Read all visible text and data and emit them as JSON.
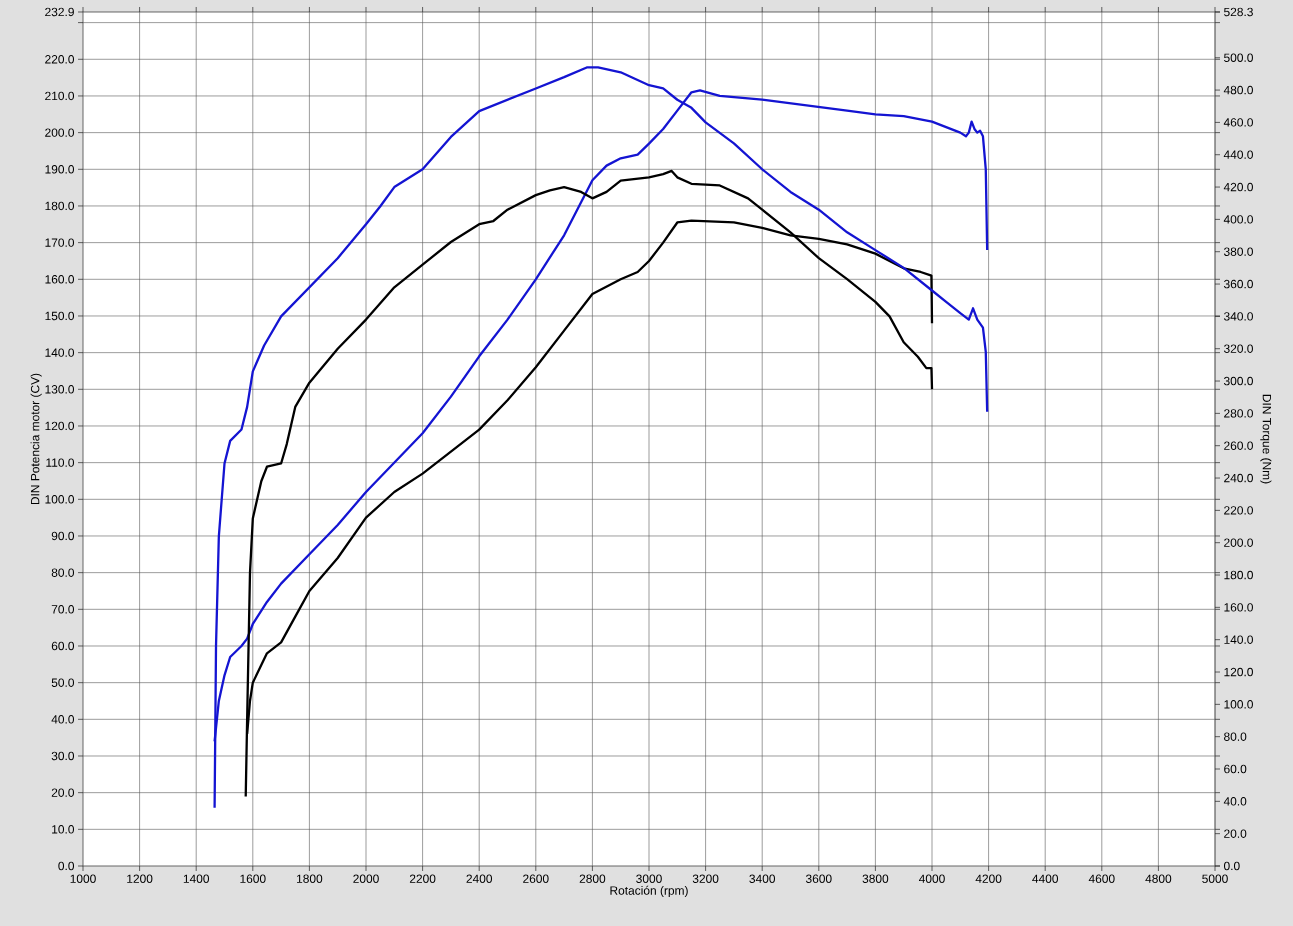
{
  "chart_data": {
    "type": "line",
    "xlabel": "Rotación (rpm)",
    "ylabel": "DIN Potencia motor (CV)",
    "y2label": "DIN Torque (Nm)",
    "xlim": [
      1000,
      5000
    ],
    "xticks": [
      1000,
      1200,
      1400,
      1600,
      1800,
      2000,
      2200,
      2400,
      2600,
      2800,
      3000,
      3200,
      3400,
      3600,
      3800,
      4000,
      4200,
      4400,
      4600,
      4800,
      5000
    ],
    "ylim": [
      0,
      232.9
    ],
    "yticks": [
      {
        "value": 0,
        "label": "0.0"
      },
      {
        "value": 10,
        "label": "10.0"
      },
      {
        "value": 20,
        "label": "20.0"
      },
      {
        "value": 30,
        "label": "30.0"
      },
      {
        "value": 40,
        "label": "40.0"
      },
      {
        "value": 50,
        "label": "50.0"
      },
      {
        "value": 60,
        "label": "60.0"
      },
      {
        "value": 70,
        "label": "70.0"
      },
      {
        "value": 80,
        "label": "80.0"
      },
      {
        "value": 90,
        "label": "90.0"
      },
      {
        "value": 100,
        "label": "100.0"
      },
      {
        "value": 110,
        "label": "110.0"
      },
      {
        "value": 120,
        "label": "120.0"
      },
      {
        "value": 130,
        "label": "130.0"
      },
      {
        "value": 140,
        "label": "140.0"
      },
      {
        "value": 150,
        "label": "150.0"
      },
      {
        "value": 160,
        "label": "160.0"
      },
      {
        "value": 170,
        "label": "170.0"
      },
      {
        "value": 180,
        "label": "180.0"
      },
      {
        "value": 190,
        "label": "190.0"
      },
      {
        "value": 200,
        "label": "200.0"
      },
      {
        "value": 210,
        "label": "210.0"
      },
      {
        "value": 220,
        "label": "220.0"
      },
      {
        "value": 230,
        "label": null
      },
      {
        "value": 232.9,
        "label": "232.9"
      }
    ],
    "y2lim": [
      0,
      528.3
    ],
    "y2ticks": [
      {
        "value": 0,
        "label": "0.0"
      },
      {
        "value": 20,
        "label": "20.0"
      },
      {
        "value": 40,
        "label": "40.0"
      },
      {
        "value": 60,
        "label": "60.0"
      },
      {
        "value": 80,
        "label": "80.0"
      },
      {
        "value": 100,
        "label": "100.0"
      },
      {
        "value": 120,
        "label": "120.0"
      },
      {
        "value": 140,
        "label": "140.0"
      },
      {
        "value": 160,
        "label": "160.0"
      },
      {
        "value": 180,
        "label": "180.0"
      },
      {
        "value": 200,
        "label": "200.0"
      },
      {
        "value": 220,
        "label": "220.0"
      },
      {
        "value": 240,
        "label": "240.0"
      },
      {
        "value": 260,
        "label": "260.0"
      },
      {
        "value": 280,
        "label": "280.0"
      },
      {
        "value": 300,
        "label": "300.0"
      },
      {
        "value": 320,
        "label": "320.0"
      },
      {
        "value": 340,
        "label": "340.0"
      },
      {
        "value": 360,
        "label": "360.0"
      },
      {
        "value": 380,
        "label": "380.0"
      },
      {
        "value": 400,
        "label": "400.0"
      },
      {
        "value": 420,
        "label": "420.0"
      },
      {
        "value": 440,
        "label": "440.0"
      },
      {
        "value": 460,
        "label": "460.0"
      },
      {
        "value": 480,
        "label": "480.0"
      },
      {
        "value": 500,
        "label": "500.0"
      },
      {
        "value": 528.3,
        "label": "528.3"
      }
    ],
    "grid": true,
    "marker": "none",
    "line_style": "solid",
    "series": [
      {
        "color": "#1414d2",
        "axis": "y2",
        "x": [
          1465,
          1470,
          1480,
          1500,
          1520,
          1560,
          1580,
          1600,
          1640,
          1700,
          1800,
          1900,
          2000,
          2050,
          2100,
          2200,
          2300,
          2400,
          2500,
          2600,
          2700,
          2780,
          2820,
          2900,
          3000,
          3050,
          3100,
          3150,
          3200,
          3300,
          3400,
          3500,
          3600,
          3700,
          3800,
          3900,
          4000,
          4050,
          4100,
          4130,
          4145,
          4160,
          4180,
          4190,
          4195
        ],
        "values": [
          36,
          136,
          204,
          249,
          263,
          270,
          284,
          306,
          322,
          340,
          358,
          376,
          397,
          408,
          420,
          431,
          451,
          467,
          474,
          481,
          488,
          494,
          494,
          491,
          483,
          481,
          474,
          469,
          460,
          447,
          431,
          417,
          406,
          392,
          381,
          370,
          356,
          349,
          342,
          338,
          345,
          338,
          333,
          318,
          281
        ]
      },
      {
        "color": "#1414d2",
        "x": [
          1465,
          1480,
          1500,
          1520,
          1560,
          1580,
          1600,
          1650,
          1700,
          1800,
          1900,
          2000,
          2100,
          2200,
          2300,
          2400,
          2500,
          2600,
          2700,
          2760,
          2800,
          2850,
          2900,
          2960,
          3000,
          3050,
          3100,
          3150,
          3180,
          3250,
          3400,
          3500,
          3600,
          3700,
          3800,
          3900,
          4000,
          4100,
          4120,
          4130,
          4140,
          4150,
          4160,
          4170,
          4180,
          4190,
          4195
        ],
        "values": [
          34,
          45,
          52,
          57,
          60,
          62,
          66,
          72,
          77,
          85,
          93,
          102,
          110,
          118,
          128,
          139,
          149,
          160,
          172,
          181,
          187,
          191,
          193,
          194,
          197,
          201,
          206,
          211,
          211.5,
          210,
          209,
          208,
          207,
          206,
          205,
          204.5,
          203,
          200,
          199,
          200,
          203,
          201,
          200,
          200.5,
          199,
          190,
          168
        ]
      },
      {
        "color": "#000000",
        "axis": "y2",
        "x": [
          1575,
          1580,
          1590,
          1600,
          1630,
          1650,
          1700,
          1720,
          1750,
          1800,
          1900,
          2000,
          2100,
          2200,
          2300,
          2400,
          2450,
          2500,
          2600,
          2650,
          2700,
          2760,
          2800,
          2850,
          2900,
          3000,
          3050,
          3080,
          3100,
          3150,
          3250,
          3350,
          3400,
          3500,
          3600,
          3700,
          3800,
          3850,
          3900,
          3950,
          3980,
          3998,
          4000
        ],
        "values": [
          43,
          91,
          181,
          215,
          238,
          247,
          249,
          261,
          284,
          299,
          320,
          338,
          358,
          372,
          386,
          397,
          399,
          406,
          415,
          418,
          420,
          417,
          413,
          417,
          424,
          426,
          428,
          430,
          426,
          422,
          421,
          413,
          406,
          392,
          376,
          363,
          349,
          340,
          324,
          315,
          308,
          308,
          295
        ]
      },
      {
        "color": "#000000",
        "x": [
          1580,
          1590,
          1600,
          1650,
          1700,
          1750,
          1800,
          1900,
          2000,
          2100,
          2200,
          2300,
          2400,
          2500,
          2600,
          2700,
          2800,
          2900,
          2960,
          3000,
          3050,
          3100,
          3150,
          3300,
          3400,
          3500,
          3600,
          3700,
          3800,
          3900,
          3960,
          3998,
          4000
        ],
        "values": [
          36,
          45,
          50,
          58,
          61,
          68,
          75,
          84,
          95,
          102,
          107,
          113,
          119,
          127,
          136,
          146,
          156,
          160,
          162,
          165,
          170,
          175.5,
          176,
          175.5,
          174,
          172,
          171,
          169.5,
          167,
          163,
          162,
          161,
          148
        ]
      }
    ]
  }
}
